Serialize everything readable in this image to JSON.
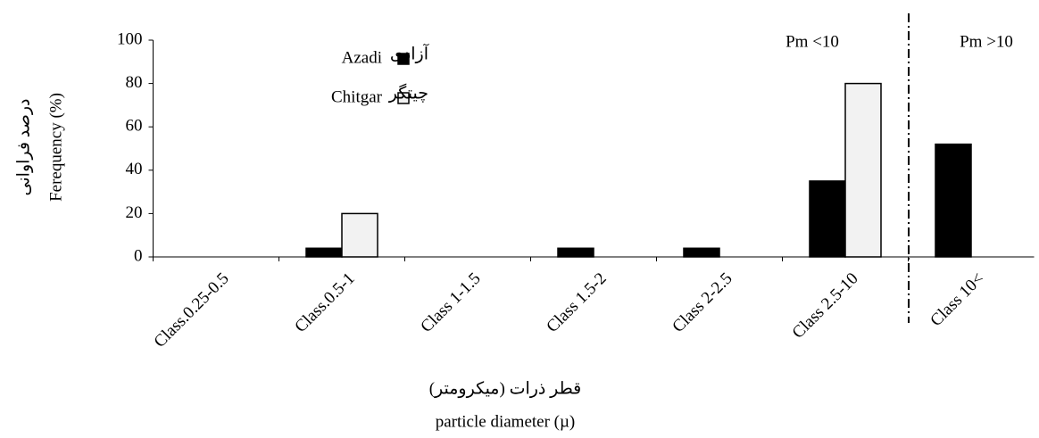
{
  "chart_data": {
    "type": "bar",
    "y_axis_label": "Ferequency (%)",
    "y_axis_label_fa": "درصد فراوانی",
    "x_axis_label": "particle diameter (µ)",
    "x_axis_label_fa": "قطر ذرات (میکرومتر)",
    "annotations": [
      "Pm <10",
      "Pm >10"
    ],
    "categories": [
      "Class.0.25-0.5",
      "Class.0.5-1",
      "Class 1-1.5",
      "Class 1.5-2",
      "Class 2-2.5",
      "Class 2.5-10",
      "Class 10<"
    ],
    "series": [
      {
        "name": "Azadi",
        "name_fa": "آزادی",
        "color": "#000000",
        "values": [
          0,
          4,
          0,
          4,
          4,
          35,
          52
        ]
      },
      {
        "name": "Chitgar",
        "name_fa": "چیتگر",
        "color": "#f2f2f2",
        "values": [
          0,
          20,
          0,
          0,
          0,
          80,
          0
        ]
      }
    ],
    "ylim": [
      0,
      100
    ],
    "yticks": [
      0,
      20,
      40,
      60,
      80,
      100
    ]
  }
}
